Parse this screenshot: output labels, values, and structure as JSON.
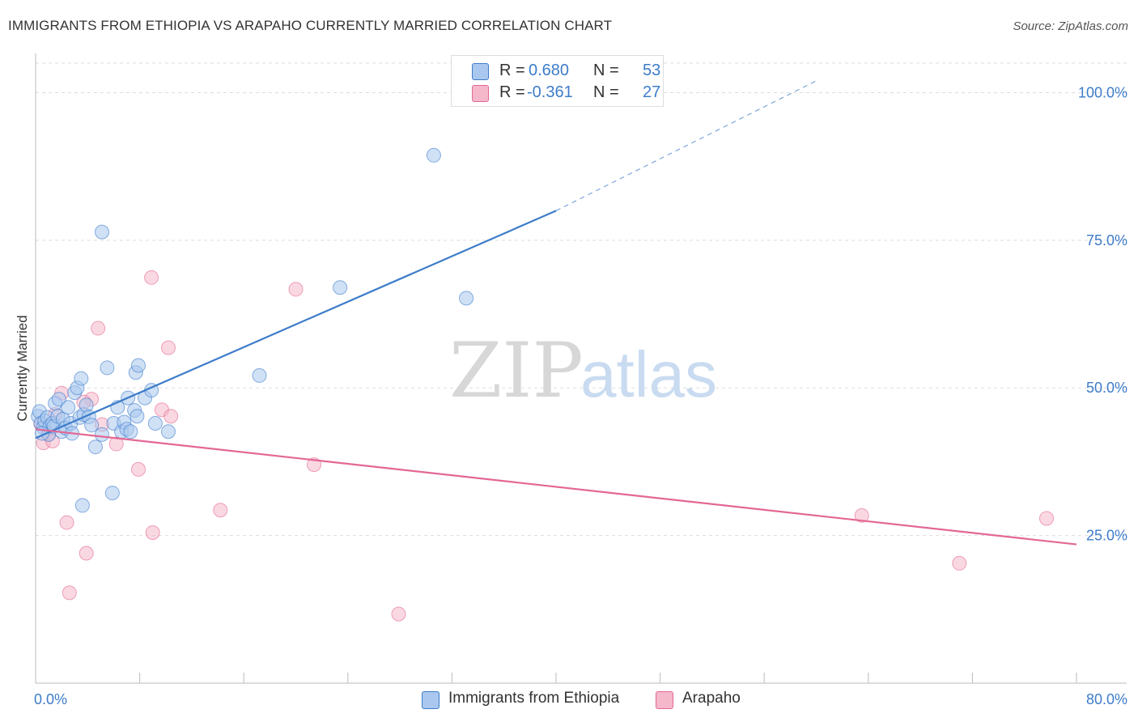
{
  "title": "IMMIGRANTS FROM ETHIOPIA VS ARAPAHO CURRENTLY MARRIED CORRELATION CHART",
  "source": "Source: ZipAtlas.com",
  "watermark": {
    "zip": "ZIP",
    "atlas": "atlas"
  },
  "colors": {
    "blue": "#3d7cc9",
    "blue_fill": "#aac8ef",
    "pink": "#e36795",
    "pink_fill": "#f5b8cb",
    "axis_text": "#3d7cc9"
  },
  "legend": {
    "r_label": "R =",
    "n_label": "N =",
    "rows": [
      {
        "r": "0.680",
        "n": "53"
      },
      {
        "r": "-0.361",
        "n": "27"
      }
    ]
  },
  "chart_data": {
    "type": "scatter",
    "title": "IMMIGRANTS FROM ETHIOPIA VS ARAPAHO CURRENTLY MARRIED CORRELATION CHART",
    "ylabel": "Currently Married",
    "xlabel": "",
    "xlim": [
      0,
      80
    ],
    "ylim": [
      0,
      105
    ],
    "x_tick_labels": [
      "0.0%",
      "80.0%"
    ],
    "y_ticks": [
      25,
      50,
      75,
      100
    ],
    "y_tick_labels": [
      "25.0%",
      "50.0%",
      "75.0%",
      "100.0%"
    ],
    "grid": true,
    "legend_position": "top-center",
    "series": [
      {
        "name": "Immigrants from Ethiopia",
        "color": "#3d7cc9",
        "r": 0.68,
        "n": 53,
        "trend": {
          "x0": 0.0,
          "y0": 41.5,
          "x1": 40.0,
          "y1": 80.0,
          "dashed_to_x": 60.0,
          "dashed_to_y": 102.0
        },
        "points": [
          [
            0.2,
            45.2
          ],
          [
            0.3,
            46.0
          ],
          [
            0.4,
            44.0
          ],
          [
            0.6,
            43.3
          ],
          [
            0.7,
            44.4
          ],
          [
            0.9,
            45.0
          ],
          [
            1.0,
            42.1
          ],
          [
            1.1,
            43.5
          ],
          [
            1.3,
            44.0
          ],
          [
            1.4,
            43.5
          ],
          [
            1.5,
            47.4
          ],
          [
            1.7,
            45.2
          ],
          [
            1.8,
            48.1
          ],
          [
            2.0,
            42.6
          ],
          [
            2.1,
            44.7
          ],
          [
            2.3,
            43.2
          ],
          [
            2.5,
            46.7
          ],
          [
            2.7,
            44.0
          ],
          [
            2.8,
            42.3
          ],
          [
            3.0,
            49.2
          ],
          [
            3.2,
            50.0
          ],
          [
            3.4,
            45.0
          ],
          [
            3.5,
            51.6
          ],
          [
            3.7,
            45.5
          ],
          [
            3.9,
            47.1
          ],
          [
            4.1,
            45.1
          ],
          [
            4.3,
            43.7
          ],
          [
            4.6,
            40.0
          ],
          [
            5.1,
            42.1
          ],
          [
            5.5,
            53.4
          ],
          [
            5.9,
            32.2
          ],
          [
            6.0,
            44.0
          ],
          [
            6.3,
            46.7
          ],
          [
            6.6,
            42.6
          ],
          [
            6.8,
            44.2
          ],
          [
            7.0,
            43.0
          ],
          [
            7.1,
            48.3
          ],
          [
            7.3,
            42.6
          ],
          [
            7.6,
            46.2
          ],
          [
            7.7,
            52.6
          ],
          [
            7.8,
            45.2
          ],
          [
            7.9,
            53.8
          ],
          [
            8.4,
            48.3
          ],
          [
            8.9,
            49.6
          ],
          [
            9.2,
            44.0
          ],
          [
            10.2,
            42.6
          ],
          [
            3.6,
            30.1
          ],
          [
            5.1,
            76.4
          ],
          [
            17.2,
            52.1
          ],
          [
            23.4,
            67.0
          ],
          [
            30.6,
            89.4
          ],
          [
            33.1,
            65.2
          ],
          [
            0.5,
            42.3
          ]
        ]
      },
      {
        "name": "Arapaho",
        "color": "#e36795",
        "r": -0.361,
        "n": 27,
        "trend": {
          "x0": 0.0,
          "y0": 43.0,
          "x1": 80.0,
          "y1": 23.5
        },
        "points": [
          [
            0.4,
            43.9
          ],
          [
            0.6,
            40.7
          ],
          [
            1.0,
            42.3
          ],
          [
            1.3,
            41.0
          ],
          [
            1.5,
            45.5
          ],
          [
            2.0,
            49.1
          ],
          [
            2.4,
            27.2
          ],
          [
            2.6,
            15.3
          ],
          [
            3.9,
            22.0
          ],
          [
            4.3,
            48.1
          ],
          [
            4.8,
            60.1
          ],
          [
            5.1,
            43.8
          ],
          [
            6.2,
            40.5
          ],
          [
            7.9,
            36.2
          ],
          [
            9.0,
            25.5
          ],
          [
            9.7,
            46.3
          ],
          [
            10.2,
            56.8
          ],
          [
            10.4,
            45.2
          ],
          [
            8.9,
            68.7
          ],
          [
            14.2,
            29.3
          ],
          [
            20.0,
            66.7
          ],
          [
            21.4,
            37.0
          ],
          [
            27.9,
            11.7
          ],
          [
            63.5,
            28.4
          ],
          [
            71.0,
            20.3
          ],
          [
            77.7,
            27.9
          ],
          [
            3.7,
            47.6
          ]
        ]
      }
    ]
  }
}
